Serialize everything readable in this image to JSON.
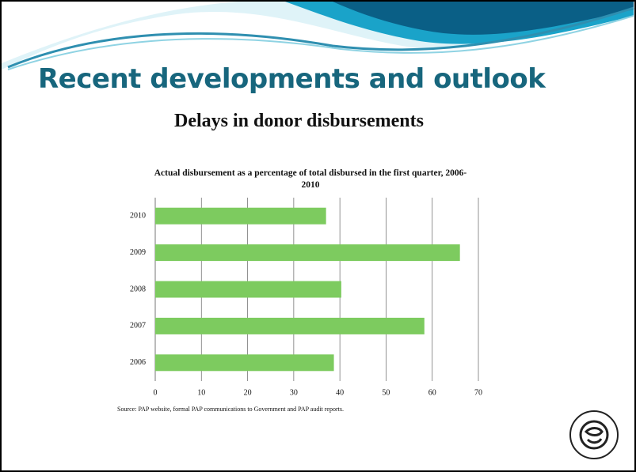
{
  "header": {
    "title": "Recent developments and outlook",
    "subtitle": "Delays in donor disbursements"
  },
  "chart_data": {
    "type": "hbar",
    "title": "Actual disbursement as a percentage of total disbursed in the first quarter, 2006-2010",
    "categories": [
      "2010",
      "2009",
      "2008",
      "2007",
      "2006"
    ],
    "values": [
      37,
      66,
      40.3,
      58.3,
      38.7
    ],
    "color": "#7dcb5f",
    "xlim": [
      0,
      70
    ],
    "xticks": [
      0,
      10,
      20,
      30,
      40,
      50,
      60,
      70
    ],
    "grid": true
  },
  "footer": {
    "source": "Source: PAP website, formal PAP communications to Government and PAP audit reports."
  }
}
